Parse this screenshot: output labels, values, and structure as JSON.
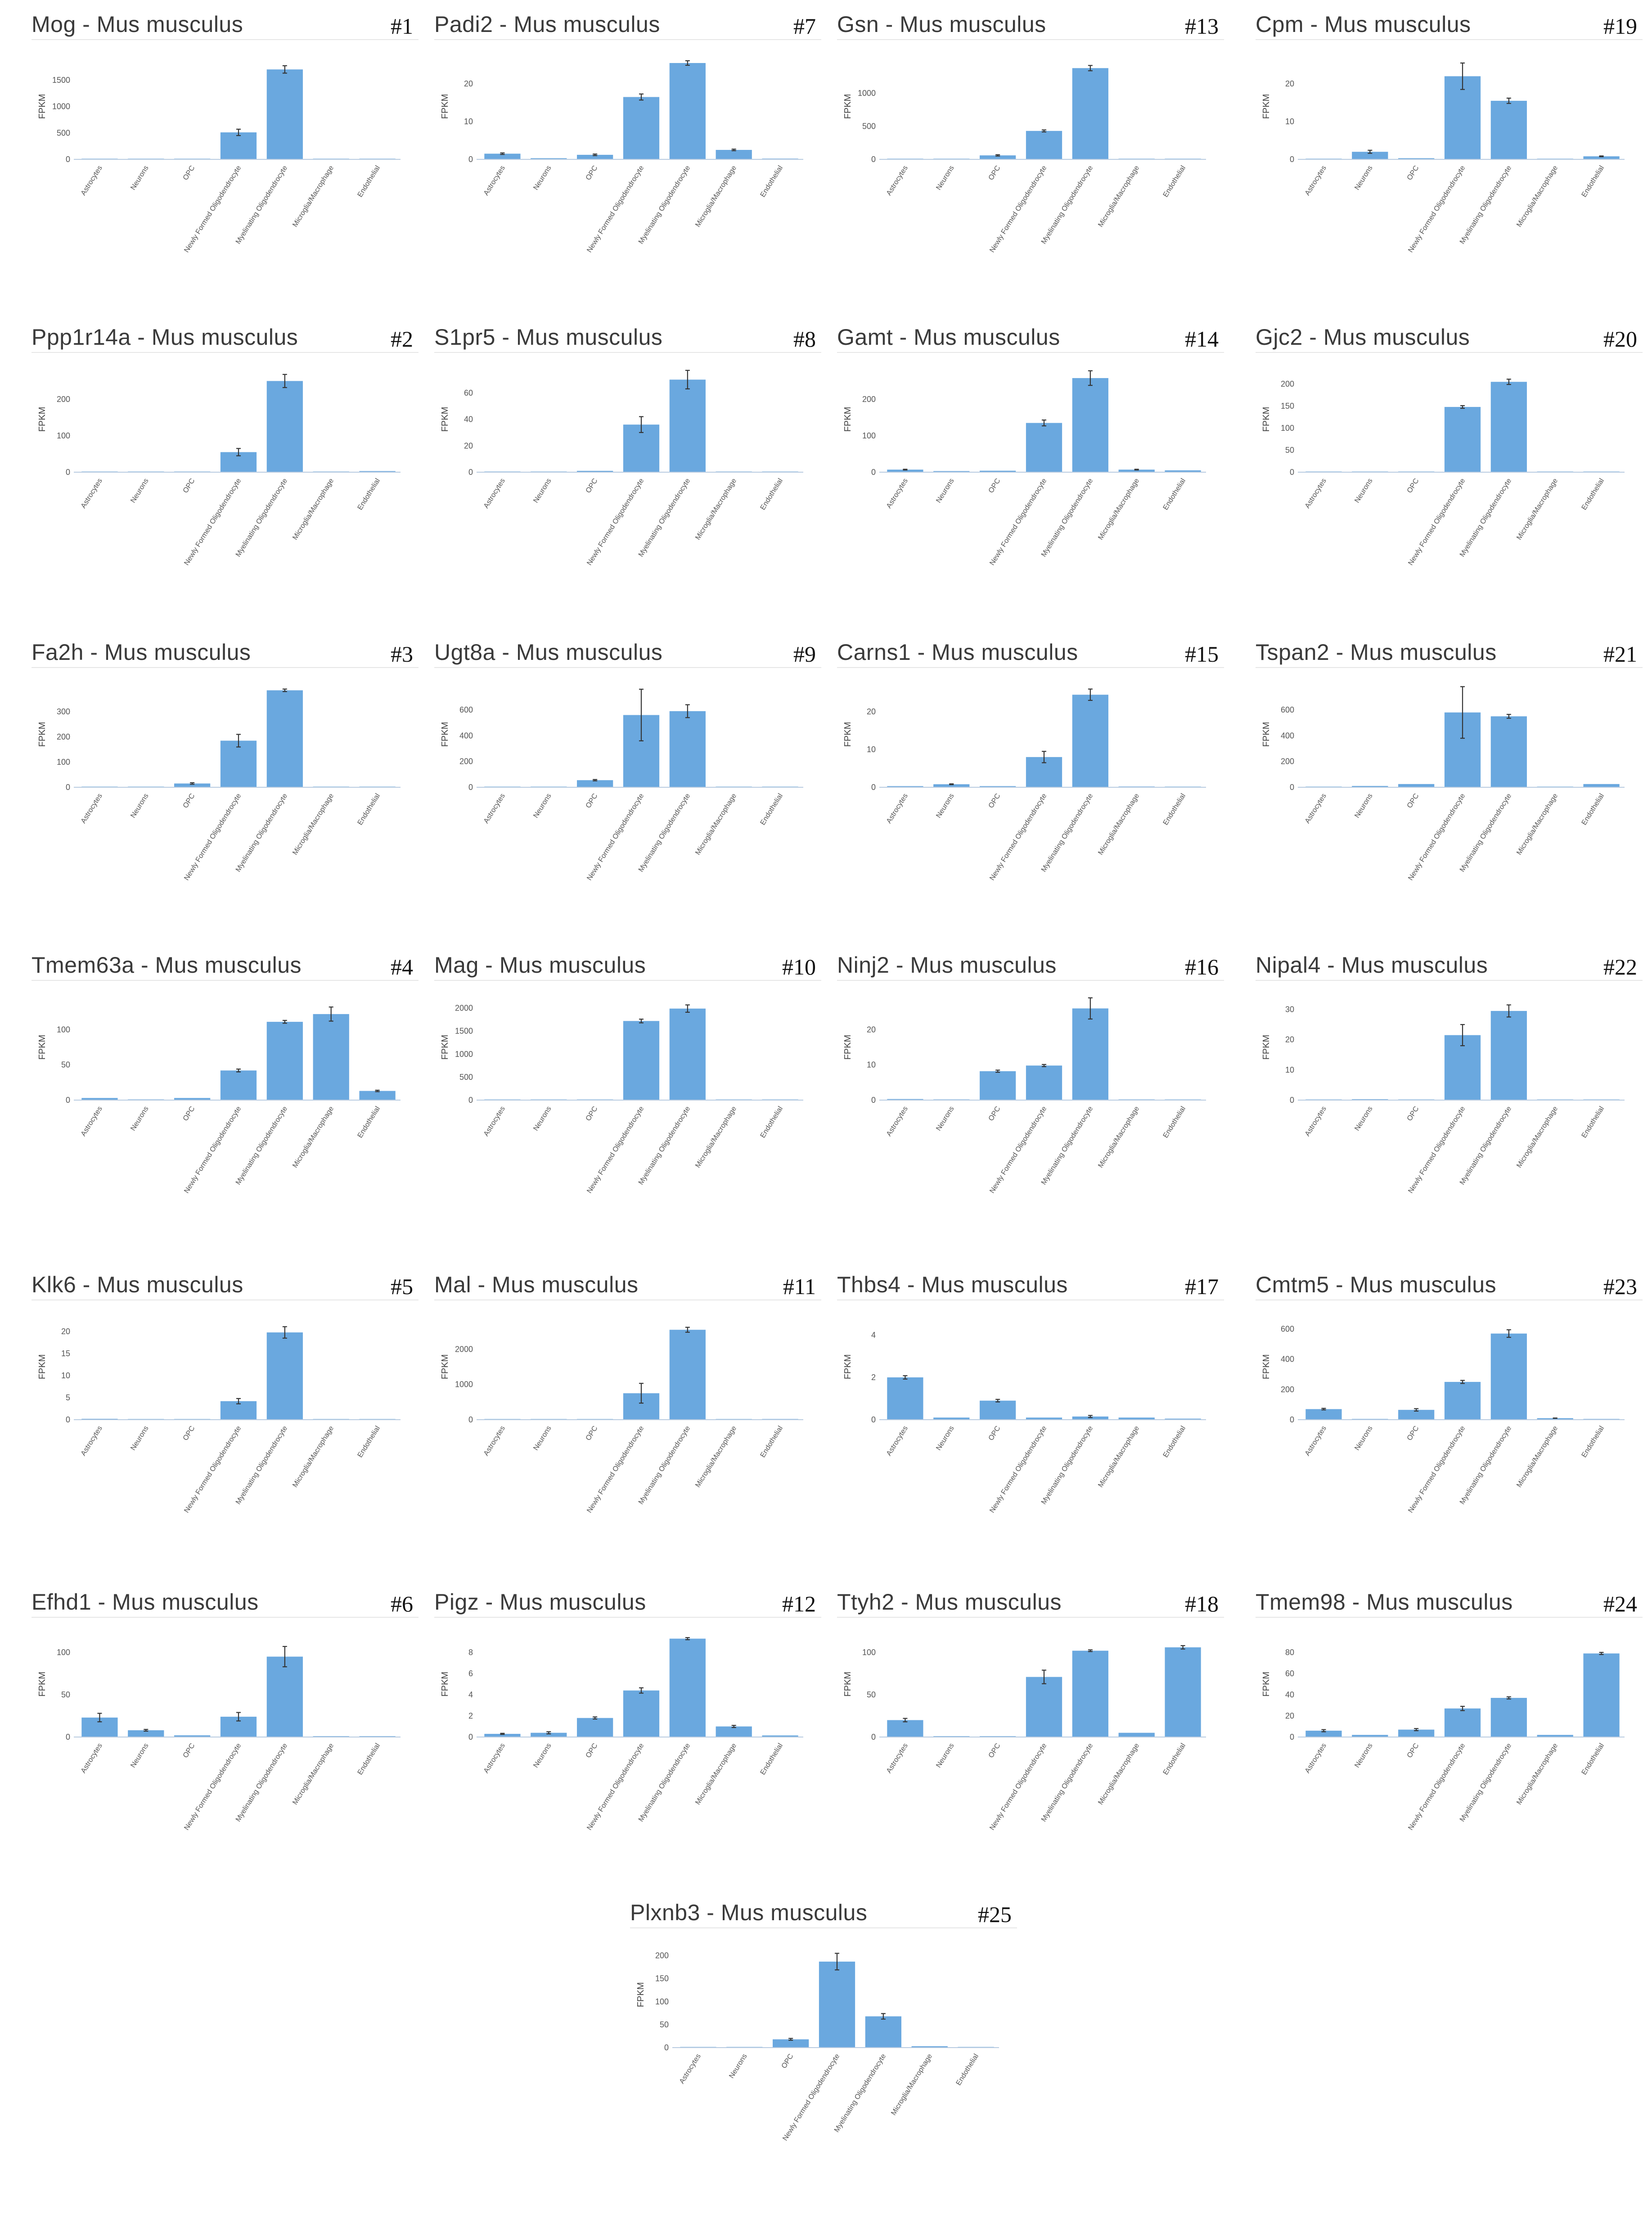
{
  "figure": {
    "species_suffix": "Mus musculus"
  },
  "chart_data": [
    {
      "id": 1,
      "label": "#1",
      "gene": "Mog",
      "title": "Mog - Mus musculus",
      "type": "bar",
      "ylabel": "FPKM",
      "ylim": [
        0,
        2000
      ],
      "yticks": [
        0,
        500,
        1000,
        1500
      ],
      "categories": [
        "Astrocytes",
        "Neurons",
        "OPC",
        "Newly Formed Oligodendrocyte",
        "Myelinating Oligodendrocyte",
        "Microglia/Macrophage",
        "Endothelial"
      ],
      "values": [
        5,
        2,
        10,
        510,
        1700,
        4,
        2
      ],
      "errors": [
        0,
        0,
        0,
        60,
        70,
        0,
        0
      ]
    },
    {
      "id": 2,
      "label": "#2",
      "gene": "Ppp1r14a",
      "title": "Ppp1r14a - Mus musculus",
      "type": "bar",
      "ylabel": "FPKM",
      "ylim": [
        0,
        290
      ],
      "yticks": [
        0,
        100,
        200
      ],
      "categories": [
        "Astrocytes",
        "Neurons",
        "OPC",
        "Newly Formed Oligodendrocyte",
        "Myelinating Oligodendrocyte",
        "Microglia/Macrophage",
        "Endothelial"
      ],
      "values": [
        1,
        1,
        1,
        55,
        250,
        1,
        3
      ],
      "errors": [
        0,
        0,
        0,
        10,
        18,
        0,
        0
      ]
    },
    {
      "id": 3,
      "label": "#3",
      "gene": "Fa2h",
      "title": "Fa2h - Mus musculus",
      "type": "bar",
      "ylabel": "FPKM",
      "ylim": [
        0,
        420
      ],
      "yticks": [
        0,
        100,
        200,
        300
      ],
      "categories": [
        "Astrocytes",
        "Neurons",
        "OPC",
        "Newly Formed Oligodendrocyte",
        "Myelinating Oligodendrocyte",
        "Microglia/Macrophage",
        "Endothelial"
      ],
      "values": [
        1,
        1,
        15,
        185,
        385,
        1,
        1
      ],
      "errors": [
        0,
        0,
        3,
        25,
        5,
        0,
        0
      ]
    },
    {
      "id": 4,
      "label": "#4",
      "gene": "Tmem63a",
      "title": "Tmem63a - Mus musculus",
      "type": "bar",
      "ylabel": "FPKM",
      "ylim": [
        0,
        150
      ],
      "yticks": [
        0,
        50,
        100
      ],
      "categories": [
        "Astrocytes",
        "Neurons",
        "OPC",
        "Newly Formed Oligodendrocyte",
        "Myelinating Oligodendrocyte",
        "Microglia/Macrophage",
        "Endothelial"
      ],
      "values": [
        3,
        1,
        3,
        42,
        111,
        122,
        13
      ],
      "errors": [
        0,
        0,
        0,
        2,
        2,
        10,
        1
      ]
    },
    {
      "id": 5,
      "label": "#5",
      "gene": "Klk6",
      "title": "Klk6 - Mus musculus",
      "type": "bar",
      "ylabel": "FPKM",
      "ylim": [
        0,
        24
      ],
      "yticks": [
        0,
        5,
        10,
        15,
        20
      ],
      "categories": [
        "Astrocytes",
        "Neurons",
        "OPC",
        "Newly Formed Oligodendrocyte",
        "Myelinating Oligodendrocyte",
        "Microglia/Macrophage",
        "Endothelial"
      ],
      "values": [
        0.2,
        0.1,
        0.1,
        4.2,
        19.8,
        0.1,
        0.1
      ],
      "errors": [
        0,
        0,
        0,
        0.6,
        1.3,
        0,
        0
      ]
    },
    {
      "id": 6,
      "label": "#6",
      "gene": "Efhd1",
      "title": "Efhd1 - Mus musculus",
      "type": "bar",
      "ylabel": "FPKM",
      "ylim": [
        0,
        125
      ],
      "yticks": [
        0,
        50,
        100
      ],
      "categories": [
        "Astrocytes",
        "Neurons",
        "OPC",
        "Newly Formed Oligodendrocyte",
        "Myelinating Oligodendrocyte",
        "Microglia/Macrophage",
        "Endothelial"
      ],
      "values": [
        23,
        8,
        2,
        24,
        95,
        1,
        1
      ],
      "errors": [
        5,
        1,
        0,
        5,
        12,
        0,
        0
      ]
    },
    {
      "id": 7,
      "label": "#7",
      "gene": "Padi2",
      "title": "Padi2 - Mus musculus",
      "type": "bar",
      "ylabel": "FPKM",
      "ylim": [
        0,
        28
      ],
      "yticks": [
        0,
        10,
        20
      ],
      "categories": [
        "Astrocytes",
        "Neurons",
        "OPC",
        "Newly Formed Oligodendrocyte",
        "Myelinating Oligodendrocyte",
        "Microglia/Macrophage",
        "Endothelial"
      ],
      "values": [
        1.5,
        0.3,
        1.2,
        16.5,
        25.5,
        2.5,
        0.2
      ],
      "errors": [
        0.2,
        0,
        0.2,
        0.8,
        0.6,
        0.2,
        0
      ]
    },
    {
      "id": 8,
      "label": "#8",
      "gene": "S1pr5",
      "title": "S1pr5 - Mus musculus",
      "type": "bar",
      "ylabel": "FPKM",
      "ylim": [
        0,
        80
      ],
      "yticks": [
        0,
        20,
        40,
        60
      ],
      "categories": [
        "Astrocytes",
        "Neurons",
        "OPC",
        "Newly Formed Oligodendrocyte",
        "Myelinating Oligodendrocyte",
        "Microglia/Macrophage",
        "Endothelial"
      ],
      "values": [
        0.3,
        0.3,
        1,
        36,
        70,
        0.3,
        0.2
      ],
      "errors": [
        0,
        0,
        0,
        6,
        7,
        0,
        0
      ]
    },
    {
      "id": 9,
      "label": "#9",
      "gene": "Ugt8a",
      "title": "Ugt8a - Mus musculus",
      "type": "bar",
      "ylabel": "FPKM",
      "ylim": [
        0,
        820
      ],
      "yticks": [
        0,
        200,
        400,
        600
      ],
      "categories": [
        "Astrocytes",
        "Neurons",
        "OPC",
        "Newly Formed Oligodendrocyte",
        "Myelinating Oligodendrocyte",
        "Microglia/Macrophage",
        "Endothelial"
      ],
      "values": [
        2,
        2,
        55,
        560,
        590,
        2,
        1
      ],
      "errors": [
        0,
        0,
        5,
        200,
        50,
        0,
        0
      ]
    },
    {
      "id": 10,
      "label": "#10",
      "gene": "Mag",
      "title": "Mag - Mus musculus",
      "type": "bar",
      "ylabel": "FPKM",
      "ylim": [
        0,
        2300
      ],
      "yticks": [
        0,
        500,
        1000,
        1500,
        2000
      ],
      "categories": [
        "Astrocytes",
        "Neurons",
        "OPC",
        "Newly Formed Oligodendrocyte",
        "Myelinating Oligodendrocyte",
        "Microglia/Macrophage",
        "Endothelial"
      ],
      "values": [
        3,
        2,
        8,
        1720,
        1990,
        3,
        2
      ],
      "errors": [
        0,
        0,
        0,
        40,
        80,
        0,
        0
      ]
    },
    {
      "id": 11,
      "label": "#11",
      "gene": "Mal",
      "title": "Mal - Mus musculus",
      "type": "bar",
      "ylabel": "FPKM",
      "ylim": [
        0,
        3000
      ],
      "yticks": [
        0,
        1000,
        2000
      ],
      "categories": [
        "Astrocytes",
        "Neurons",
        "OPC",
        "Newly Formed Oligodendrocyte",
        "Myelinating Oligodendrocyte",
        "Microglia/Macrophage",
        "Endothelial"
      ],
      "values": [
        5,
        5,
        15,
        750,
        2550,
        8,
        20
      ],
      "errors": [
        0,
        0,
        0,
        280,
        70,
        0,
        0
      ]
    },
    {
      "id": 12,
      "label": "#12",
      "gene": "Pigz",
      "title": "Pigz - Mus musculus",
      "type": "bar",
      "ylabel": "FPKM",
      "ylim": [
        0,
        10
      ],
      "yticks": [
        0,
        2,
        4,
        6,
        8
      ],
      "categories": [
        "Astrocytes",
        "Neurons",
        "OPC",
        "Newly Formed Oligodendrocyte",
        "Myelinating Oligodendrocyte",
        "Microglia/Macrophage",
        "Endothelial"
      ],
      "values": [
        0.3,
        0.4,
        1.8,
        4.4,
        9.3,
        1.0,
        0.15
      ],
      "errors": [
        0.05,
        0.1,
        0.1,
        0.25,
        0.1,
        0.1,
        0
      ]
    },
    {
      "id": 13,
      "label": "#13",
      "gene": "Gsn",
      "title": "Gsn - Mus musculus",
      "type": "bar",
      "ylabel": "FPKM",
      "ylim": [
        0,
        1600
      ],
      "yticks": [
        0,
        500,
        1000
      ],
      "categories": [
        "Astrocytes",
        "Neurons",
        "OPC",
        "Newly Formed Oligodendrocyte",
        "Myelinating Oligodendrocyte",
        "Microglia/Macrophage",
        "Endothelial"
      ],
      "values": [
        5,
        3,
        60,
        430,
        1380,
        5,
        3
      ],
      "errors": [
        0,
        0,
        10,
        15,
        40,
        0,
        0
      ]
    },
    {
      "id": 14,
      "label": "#14",
      "gene": "Gamt",
      "title": "Gamt - Mus musculus",
      "type": "bar",
      "ylabel": "FPKM",
      "ylim": [
        0,
        290
      ],
      "yticks": [
        0,
        100,
        200
      ],
      "categories": [
        "Astrocytes",
        "Neurons",
        "OPC",
        "Newly Formed Oligodendrocyte",
        "Myelinating Oligodendrocyte",
        "Microglia/Macrophage",
        "Endothelial"
      ],
      "values": [
        7,
        3,
        4,
        135,
        258,
        7,
        5
      ],
      "errors": [
        1,
        0,
        0,
        8,
        20,
        1,
        0
      ]
    },
    {
      "id": 15,
      "label": "#15",
      "gene": "Carns1",
      "title": "Carns1 - Mus musculus",
      "type": "bar",
      "ylabel": "FPKM",
      "ylim": [
        0,
        28
      ],
      "yticks": [
        0,
        10,
        20
      ],
      "categories": [
        "Astrocytes",
        "Neurons",
        "OPC",
        "Newly Formed Oligodendrocyte",
        "Myelinating Oligodendrocyte",
        "Microglia/Macrophage",
        "Endothelial"
      ],
      "values": [
        0.3,
        0.8,
        0.3,
        8,
        24.5,
        0.2,
        0.1
      ],
      "errors": [
        0,
        0.1,
        0,
        1.5,
        1.5,
        0,
        0
      ]
    },
    {
      "id": 16,
      "label": "#16",
      "gene": "Ninj2",
      "title": "Ninj2 - Mus musculus",
      "type": "bar",
      "ylabel": "FPKM",
      "ylim": [
        0,
        30
      ],
      "yticks": [
        0,
        10,
        20
      ],
      "categories": [
        "Astrocytes",
        "Neurons",
        "OPC",
        "Newly Formed Oligodendrocyte",
        "Myelinating Oligodendrocyte",
        "Microglia/Macrophage",
        "Endothelial"
      ],
      "values": [
        0.3,
        0.2,
        8.2,
        9.8,
        26,
        0.2,
        0.1
      ],
      "errors": [
        0,
        0,
        0.3,
        0.3,
        3,
        0,
        0
      ]
    },
    {
      "id": 17,
      "label": "#17",
      "gene": "Thbs4",
      "title": "Thbs4 - Mus musculus",
      "type": "bar",
      "ylabel": "FPKM",
      "ylim": [
        0,
        5
      ],
      "yticks": [
        0,
        2,
        4
      ],
      "categories": [
        "Astrocytes",
        "Neurons",
        "OPC",
        "Newly Formed Oligodendrocyte",
        "Myelinating Oligodendrocyte",
        "Microglia/Macrophage",
        "Endothelial"
      ],
      "values": [
        2.0,
        0.1,
        0.9,
        0.1,
        0.15,
        0.1,
        0.05
      ],
      "errors": [
        0.08,
        0,
        0.06,
        0,
        0.05,
        0,
        0
      ]
    },
    {
      "id": 18,
      "label": "#18",
      "gene": "Ttyh2",
      "title": "Ttyh2 - Mus musculus",
      "type": "bar",
      "ylabel": "FPKM",
      "ylim": [
        0,
        125
      ],
      "yticks": [
        0,
        50,
        100
      ],
      "categories": [
        "Astrocytes",
        "Neurons",
        "OPC",
        "Newly Formed Oligodendrocyte",
        "Myelinating Oligodendrocyte",
        "Microglia/Macrophage",
        "Endothelial"
      ],
      "values": [
        20,
        1,
        1,
        71,
        102,
        5,
        106
      ],
      "errors": [
        2,
        0,
        0,
        8,
        1,
        0,
        2
      ]
    },
    {
      "id": 19,
      "label": "#19",
      "gene": "Cpm",
      "title": "Cpm - Mus musculus",
      "type": "bar",
      "ylabel": "FPKM",
      "ylim": [
        0,
        28
      ],
      "yticks": [
        0,
        10,
        20
      ],
      "categories": [
        "Astrocytes",
        "Neurons",
        "OPC",
        "Newly Formed Oligodendrocyte",
        "Myelinating Oligodendrocyte",
        "Microglia/Macrophage",
        "Endothelial"
      ],
      "values": [
        0.1,
        2.0,
        0.3,
        22,
        15.5,
        0.1,
        0.8
      ],
      "errors": [
        0,
        0.4,
        0,
        3.5,
        0.7,
        0,
        0.1
      ]
    },
    {
      "id": 20,
      "label": "#20",
      "gene": "Gjc2",
      "title": "Gjc2 - Mus musculus",
      "type": "bar",
      "ylabel": "FPKM",
      "ylim": [
        0,
        240
      ],
      "yticks": [
        0,
        50,
        100,
        150,
        200
      ],
      "categories": [
        "Astrocytes",
        "Neurons",
        "OPC",
        "Newly Formed Oligodendrocyte",
        "Myelinating Oligodendrocyte",
        "Microglia/Macrophage",
        "Endothelial"
      ],
      "values": [
        0.5,
        0.5,
        0.5,
        148,
        205,
        0.5,
        0.5
      ],
      "errors": [
        0,
        0,
        0,
        3,
        6,
        0,
        0
      ]
    },
    {
      "id": 21,
      "label": "#21",
      "gene": "Tspan2",
      "title": "Tspan2 - Mus musculus",
      "type": "bar",
      "ylabel": "FPKM",
      "ylim": [
        0,
        820
      ],
      "yticks": [
        0,
        200,
        400,
        600
      ],
      "categories": [
        "Astrocytes",
        "Neurons",
        "OPC",
        "Newly Formed Oligodendrocyte",
        "Myelinating Oligodendrocyte",
        "Microglia/Macrophage",
        "Endothelial"
      ],
      "values": [
        5,
        10,
        25,
        580,
        550,
        5,
        25
      ],
      "errors": [
        0,
        0,
        0,
        200,
        15,
        0,
        0
      ]
    },
    {
      "id": 22,
      "label": "#22",
      "gene": "Nipal4",
      "title": "Nipal4 - Mus musculus",
      "type": "bar",
      "ylabel": "FPKM",
      "ylim": [
        0,
        35
      ],
      "yticks": [
        0,
        10,
        20,
        30
      ],
      "categories": [
        "Astrocytes",
        "Neurons",
        "OPC",
        "Newly Formed Oligodendrocyte",
        "Myelinating Oligodendrocyte",
        "Microglia/Macrophage",
        "Endothelial"
      ],
      "values": [
        0.2,
        0.3,
        0.2,
        21.5,
        29.5,
        0.1,
        0.1
      ],
      "errors": [
        0,
        0,
        0,
        3.5,
        2,
        0,
        0
      ]
    },
    {
      "id": 23,
      "label": "#23",
      "gene": "Cmtm5",
      "title": "Cmtm5 - Mus musculus",
      "type": "bar",
      "ylabel": "FPKM",
      "ylim": [
        0,
        700
      ],
      "yticks": [
        0,
        200,
        400,
        600
      ],
      "categories": [
        "Astrocytes",
        "Neurons",
        "OPC",
        "Newly Formed Oligodendrocyte",
        "Myelinating Oligodendrocyte",
        "Microglia/Macrophage",
        "Endothelial"
      ],
      "values": [
        70,
        5,
        65,
        250,
        570,
        10,
        5
      ],
      "errors": [
        5,
        0,
        8,
        10,
        25,
        1,
        0
      ]
    },
    {
      "id": 24,
      "label": "#24",
      "gene": "Tmem98",
      "title": "Tmem98 - Mus musculus",
      "type": "bar",
      "ylabel": "FPKM",
      "ylim": [
        0,
        100
      ],
      "yticks": [
        0,
        20,
        40,
        60,
        80
      ],
      "categories": [
        "Astrocytes",
        "Neurons",
        "OPC",
        "Newly Formed Oligodendrocyte",
        "Myelinating Oligodendrocyte",
        "Microglia/Macrophage",
        "Endothelial"
      ],
      "values": [
        6,
        2,
        7,
        27,
        37,
        2,
        79
      ],
      "errors": [
        1,
        0,
        1,
        2,
        1,
        0,
        1
      ]
    },
    {
      "id": 25,
      "label": "#25",
      "gene": "Plxnb3",
      "title": "Plxnb3 - Mus musculus",
      "type": "bar",
      "ylabel": "FPKM",
      "ylim": [
        0,
        230
      ],
      "yticks": [
        0,
        50,
        100,
        150,
        200
      ],
      "categories": [
        "Astrocytes",
        "Neurons",
        "OPC",
        "Newly Formed Oligodendrocyte",
        "Myelinating Oligodendrocyte",
        "Microglia/Macrophage",
        "Endothelial"
      ],
      "values": [
        1,
        1,
        18,
        187,
        68,
        3,
        1
      ],
      "errors": [
        0,
        0,
        2,
        18,
        6,
        0,
        0
      ]
    }
  ],
  "colors": {
    "bar": "#6aa8df",
    "axis": "#b8cbe0",
    "error": "#333333",
    "title": "#3a3a3a"
  }
}
